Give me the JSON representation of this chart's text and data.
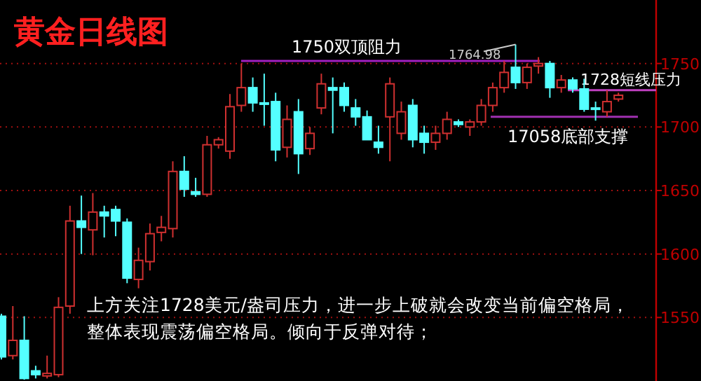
{
  "chart_data": {
    "type": "candlestick",
    "title": "黄金日线图",
    "categories": [
      null,
      null,
      null,
      null,
      null,
      null,
      null,
      null,
      null,
      null,
      null,
      null,
      null,
      null,
      null,
      null,
      null,
      null,
      null,
      null,
      null,
      null,
      null,
      null,
      null,
      null,
      null,
      null,
      null,
      null,
      null,
      null,
      null,
      null,
      null,
      null,
      null,
      null,
      null,
      null,
      null,
      null,
      null,
      null,
      null,
      null,
      null,
      null,
      null,
      null,
      null,
      null,
      null,
      null,
      null
    ],
    "ohlc": [
      [
        1551,
        1553,
        1517,
        1519
      ],
      [
        1520,
        1559,
        1517,
        1532
      ],
      [
        1532,
        1551,
        1501,
        1502
      ],
      [
        1508,
        1512,
        1502,
        1505
      ],
      [
        1504,
        1520,
        1502,
        1506
      ],
      [
        1505,
        1566,
        1503,
        1558
      ],
      [
        1559,
        1638,
        1553,
        1626
      ],
      [
        1626,
        1646,
        1600,
        1621
      ],
      [
        1619,
        1648,
        1599,
        1633
      ],
      [
        1633,
        1638,
        1613,
        1630
      ],
      [
        1635,
        1638,
        1614,
        1626
      ],
      [
        1625,
        1628,
        1577,
        1581
      ],
      [
        1580,
        1605,
        1573,
        1595
      ],
      [
        1594,
        1624,
        1587,
        1616
      ],
      [
        1617,
        1630,
        1610,
        1621
      ],
      [
        1620,
        1673,
        1613,
        1665
      ],
      [
        1665,
        1677,
        1645,
        1651
      ],
      [
        1649,
        1660,
        1645,
        1647
      ],
      [
        1647,
        1693,
        1645,
        1686
      ],
      [
        1686,
        1692,
        1683,
        1690
      ],
      [
        1681,
        1726,
        1675,
        1716
      ],
      [
        1717,
        1750,
        1712,
        1731
      ],
      [
        1731,
        1739,
        1712,
        1719
      ],
      [
        1719,
        1742,
        1701,
        1718
      ],
      [
        1720,
        1727,
        1673,
        1682
      ],
      [
        1684,
        1717,
        1676,
        1706
      ],
      [
        1712,
        1722,
        1663,
        1679
      ],
      [
        1683,
        1700,
        1678,
        1695
      ],
      [
        1715,
        1742,
        1710,
        1734
      ],
      [
        1731,
        1739,
        1695,
        1729
      ],
      [
        1731,
        1735,
        1712,
        1717
      ],
      [
        1715,
        1722,
        1701,
        1708
      ],
      [
        1708,
        1713,
        1690,
        1690
      ],
      [
        1688,
        1701,
        1679,
        1684
      ],
      [
        1708,
        1739,
        1673,
        1734
      ],
      [
        1695,
        1720,
        1690,
        1712
      ],
      [
        1717,
        1722,
        1684,
        1690
      ],
      [
        1695,
        1701,
        1679,
        1688
      ],
      [
        1688,
        1701,
        1682,
        1695
      ],
      [
        1695,
        1712,
        1690,
        1706
      ],
      [
        1704,
        1706,
        1700,
        1702
      ],
      [
        1700,
        1706,
        1693,
        1704
      ],
      [
        1704,
        1722,
        1701,
        1717
      ],
      [
        1717,
        1735,
        1712,
        1731
      ],
      [
        1731,
        1752,
        1727,
        1743
      ],
      [
        1747,
        1764.98,
        1730,
        1735
      ],
      [
        1735,
        1750,
        1730,
        1747
      ],
      [
        1748,
        1755,
        1742,
        1750
      ],
      [
        1750,
        1752,
        1723,
        1731
      ],
      [
        1731,
        1741,
        1727,
        1737
      ],
      [
        1737,
        1739,
        1727,
        1730
      ],
      [
        1730,
        1738,
        1712,
        1714
      ],
      [
        1715,
        1720,
        1705,
        1714
      ],
      [
        1712,
        1729,
        1708,
        1720
      ],
      [
        1722,
        1727,
        1720,
        1725
      ]
    ],
    "colors": [
      "#54ffff",
      "#d03030",
      "#54ffff",
      "#54ffff",
      "#d03030",
      "#d03030",
      "#d03030",
      "#54ffff",
      "#d03030",
      "#54ffff",
      "#54ffff",
      "#54ffff",
      "#d03030",
      "#d03030",
      "#d03030",
      "#d03030",
      "#54ffff",
      "#54ffff",
      "#d03030",
      "#d03030",
      "#d03030",
      "#d03030",
      "#54ffff",
      "#54ffff",
      "#54ffff",
      "#d03030",
      "#54ffff",
      "#d03030",
      "#d03030",
      "#54ffff",
      "#54ffff",
      "#54ffff",
      "#54ffff",
      "#54ffff",
      "#d03030",
      "#d03030",
      "#54ffff",
      "#54ffff",
      "#d03030",
      "#d03030",
      "#54ffff",
      "#d03030",
      "#d03030",
      "#d03030",
      "#d03030",
      "#54ffff",
      "#d03030",
      "#d03030",
      "#54ffff",
      "#d03030",
      "#54ffff",
      "#54ffff",
      "#54ffff",
      "#d03030",
      "#d03030"
    ],
    "ylim": [
      1500,
      1800
    ],
    "yticks": [
      1550,
      1600,
      1650,
      1700,
      1750
    ],
    "tick_labels": "y",
    "grid": "y",
    "ref_lines": [
      {
        "axis": "y",
        "value": 1752,
        "label": "1750双顶阻力",
        "color": "#a020c0"
      },
      {
        "axis": "y",
        "value": 1729,
        "label": "1728短线压力",
        "color": "#c040c0"
      },
      {
        "axis": "y",
        "value": 1708,
        "label": "17058底部支撑",
        "color": "#a030b0"
      }
    ],
    "annotations": [
      "1764.98",
      "上方关注1728美元/盎司压力，进一步上破就会改变当前偏空格局，",
      "整体表现震荡偏空格局。倾向于反弹对待；"
    ]
  }
}
